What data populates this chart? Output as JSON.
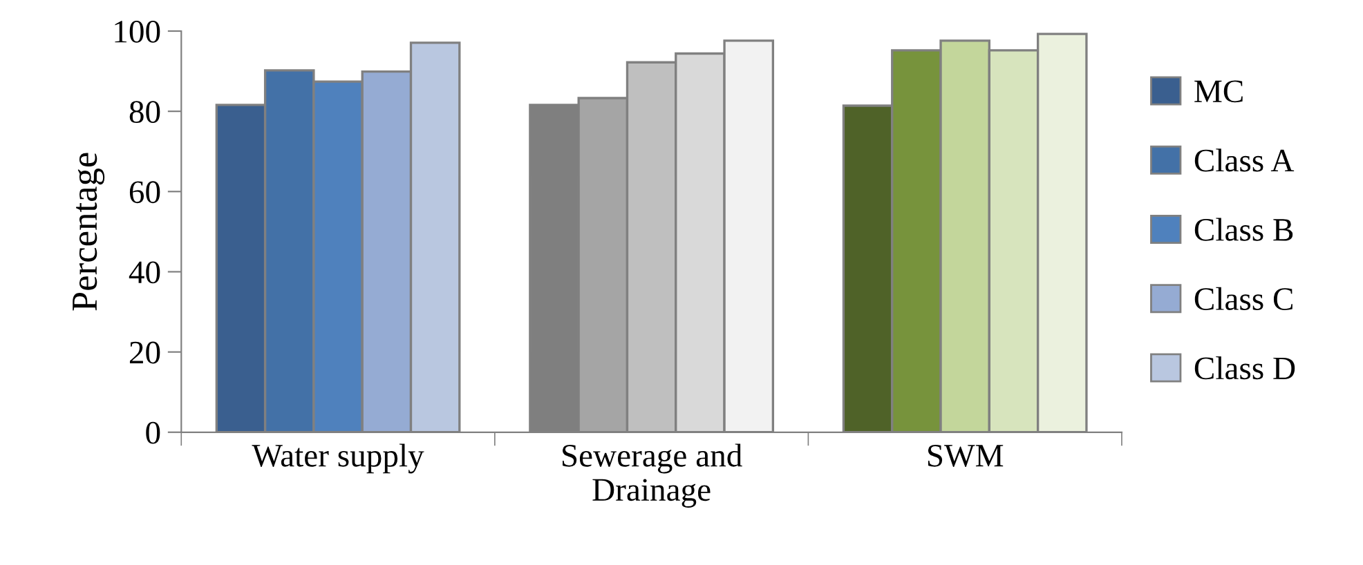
{
  "chart_data": {
    "type": "bar",
    "categories": [
      "Water supply",
      "Sewerage and\nDrainage",
      "SWM"
    ],
    "ylabel": "Percentage",
    "ylim": [
      0,
      100
    ],
    "yticks": [
      0,
      20,
      40,
      60,
      80,
      100
    ],
    "grid": false,
    "legend": "right",
    "series": [
      {
        "name": "MC",
        "color": "#3a5f8f",
        "colors": [
          "#3a5f8f",
          "#7f7f7f",
          "#4f6228"
        ],
        "values": [
          81.6,
          81.6,
          81.4
        ]
      },
      {
        "name": "Class A",
        "color": "#4371a7",
        "colors": [
          "#4371a7",
          "#a5a5a5",
          "#77933c"
        ],
        "values": [
          90.2,
          83.3,
          95.2
        ]
      },
      {
        "name": "Class B",
        "color": "#4f81bd",
        "colors": [
          "#4f81bd",
          "#bfbfbf",
          "#c3d69b"
        ],
        "values": [
          87.4,
          92.2,
          97.6
        ]
      },
      {
        "name": "Class C",
        "color": "#95abd3",
        "colors": [
          "#95abd3",
          "#d9d9d9",
          "#d7e4bd"
        ],
        "values": [
          89.9,
          94.4,
          95.2
        ]
      },
      {
        "name": "Class D",
        "color": "#b9c7e0",
        "colors": [
          "#b9c7e0",
          "#f2f2f2",
          "#ebf1de"
        ],
        "values": [
          97.1,
          97.6,
          99.3
        ]
      }
    ]
  }
}
